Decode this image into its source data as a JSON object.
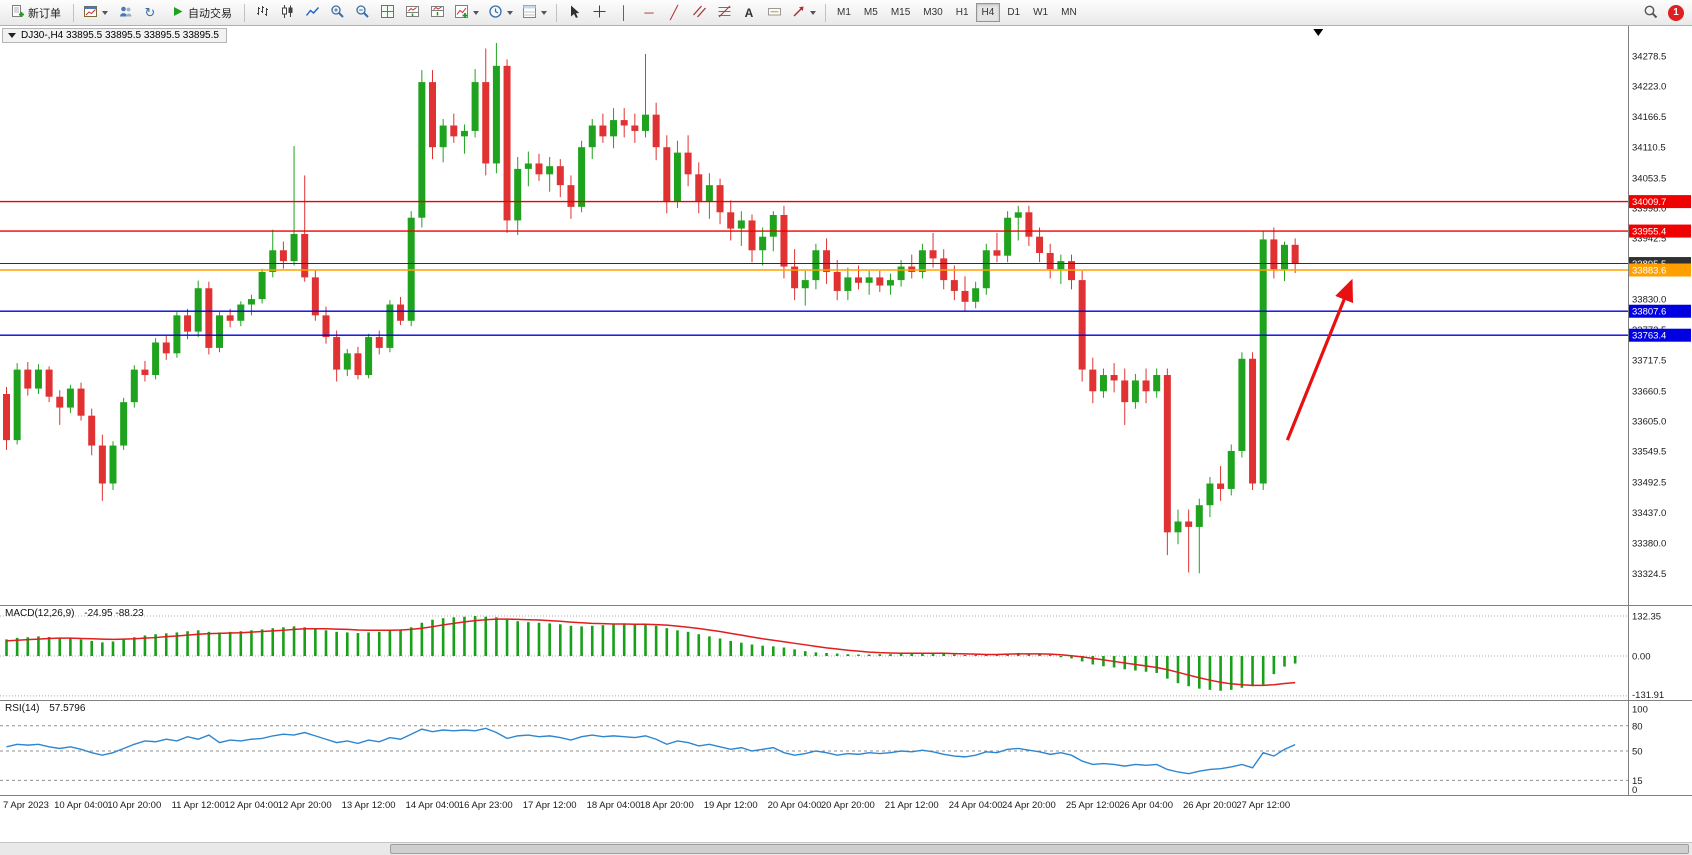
{
  "toolbar": {
    "new_order_label": "新订单",
    "auto_trading_label": "自动交易",
    "timeframes": [
      "M1",
      "M5",
      "M15",
      "M30",
      "H1",
      "H4",
      "D1",
      "W1",
      "MN"
    ],
    "active_timeframe": "H4",
    "notification_count": "1",
    "glyphs": {
      "refresh": "↻",
      "vline": "│",
      "hline": "─",
      "trendline": "╱",
      "text": "A"
    }
  },
  "chart": {
    "tab_title": "DJ30-,H4 33895.5 33895.5 33895.5 33895.5",
    "colors": {
      "bull": "#1fa31f",
      "bear": "#e03232",
      "macd_hist": "#18a018",
      "macd_signal": "#e01e1e",
      "rsi": "#2e86d0",
      "arrow": "#e81010",
      "separator": "#808080",
      "axis_text": "#1a1a1a"
    }
  },
  "chart_data": {
    "type": "candlestick",
    "symbol": "DJ30-",
    "period": "H4",
    "current_price": 33895.5,
    "price_range": [
      33290,
      34315
    ],
    "ohlc": [
      [
        33655,
        33668,
        33552,
        33570
      ],
      [
        33570,
        33712,
        33562,
        33700
      ],
      [
        33700,
        33714,
        33652,
        33665
      ],
      [
        33665,
        33710,
        33655,
        33700
      ],
      [
        33700,
        33706,
        33640,
        33650
      ],
      [
        33650,
        33662,
        33598,
        33630
      ],
      [
        33630,
        33672,
        33620,
        33665
      ],
      [
        33665,
        33676,
        33606,
        33615
      ],
      [
        33615,
        33628,
        33542,
        33560
      ],
      [
        33560,
        33580,
        33458,
        33490
      ],
      [
        33490,
        33568,
        33478,
        33560
      ],
      [
        33560,
        33648,
        33552,
        33640
      ],
      [
        33640,
        33708,
        33630,
        33700
      ],
      [
        33700,
        33716,
        33678,
        33690
      ],
      [
        33690,
        33758,
        33682,
        33750
      ],
      [
        33750,
        33762,
        33718,
        33730
      ],
      [
        33730,
        33806,
        33722,
        33800
      ],
      [
        33800,
        33812,
        33756,
        33770
      ],
      [
        33770,
        33864,
        33760,
        33850
      ],
      [
        33850,
        33862,
        33728,
        33740
      ],
      [
        33740,
        33806,
        33732,
        33800
      ],
      [
        33800,
        33812,
        33778,
        33790
      ],
      [
        33790,
        33826,
        33780,
        33820
      ],
      [
        33820,
        33838,
        33800,
        33830
      ],
      [
        33830,
        33886,
        33822,
        33880
      ],
      [
        33880,
        33958,
        33870,
        33920
      ],
      [
        33920,
        33936,
        33886,
        33900
      ],
      [
        33900,
        34112,
        33892,
        33950
      ],
      [
        33950,
        34058,
        33862,
        33870
      ],
      [
        33870,
        33884,
        33790,
        33800
      ],
      [
        33800,
        33816,
        33748,
        33760
      ],
      [
        33760,
        33772,
        33678,
        33700
      ],
      [
        33700,
        33738,
        33688,
        33730
      ],
      [
        33730,
        33742,
        33682,
        33690
      ],
      [
        33690,
        33766,
        33684,
        33760
      ],
      [
        33760,
        33772,
        33728,
        33740
      ],
      [
        33740,
        33828,
        33732,
        33820
      ],
      [
        33820,
        33834,
        33782,
        33790
      ],
      [
        33790,
        33992,
        33780,
        33980
      ],
      [
        33980,
        34252,
        33962,
        34230
      ],
      [
        34230,
        34252,
        34088,
        34110
      ],
      [
        34110,
        34162,
        34082,
        34150
      ],
      [
        34150,
        34172,
        34118,
        34130
      ],
      [
        34130,
        34152,
        34098,
        34140
      ],
      [
        34140,
        34254,
        34128,
        34230
      ],
      [
        34230,
        34292,
        34058,
        34080
      ],
      [
        34080,
        34302,
        34062,
        34260
      ],
      [
        34260,
        34272,
        33952,
        33975
      ],
      [
        33975,
        34092,
        33948,
        34070
      ],
      [
        34070,
        34102,
        34038,
        34080
      ],
      [
        34080,
        34098,
        34048,
        34060
      ],
      [
        34060,
        34092,
        34028,
        34075
      ],
      [
        34075,
        34088,
        34018,
        34040
      ],
      [
        34040,
        34058,
        33978,
        34000
      ],
      [
        34000,
        34122,
        33990,
        34110
      ],
      [
        34110,
        34162,
        34088,
        34150
      ],
      [
        34150,
        34172,
        34118,
        34130
      ],
      [
        34130,
        34182,
        34108,
        34160
      ],
      [
        34160,
        34182,
        34128,
        34150
      ],
      [
        34150,
        34172,
        34118,
        34140
      ],
      [
        34140,
        34282,
        34128,
        34170
      ],
      [
        34170,
        34192,
        34086,
        34110
      ],
      [
        34110,
        34132,
        33988,
        34010
      ],
      [
        34010,
        34122,
        33998,
        34100
      ],
      [
        34100,
        34132,
        34038,
        34060
      ],
      [
        34060,
        34082,
        33988,
        34010
      ],
      [
        34010,
        34062,
        33978,
        34040
      ],
      [
        34040,
        34052,
        33968,
        33990
      ],
      [
        33990,
        34012,
        33938,
        33960
      ],
      [
        33960,
        33992,
        33928,
        33975
      ],
      [
        33975,
        33986,
        33898,
        33920
      ],
      [
        33920,
        33962,
        33892,
        33945
      ],
      [
        33945,
        33992,
        33918,
        33985
      ],
      [
        33985,
        34002,
        33868,
        33890
      ],
      [
        33890,
        33922,
        33828,
        33850
      ],
      [
        33850,
        33882,
        33818,
        33865
      ],
      [
        33865,
        33932,
        33848,
        33920
      ],
      [
        33920,
        33942,
        33858,
        33880
      ],
      [
        33880,
        33902,
        33828,
        33845
      ],
      [
        33845,
        33888,
        33828,
        33870
      ],
      [
        33870,
        33892,
        33848,
        33860
      ],
      [
        33860,
        33882,
        33838,
        33870
      ],
      [
        33870,
        33882,
        33843,
        33855
      ],
      [
        33855,
        33877,
        33838,
        33865
      ],
      [
        33865,
        33902,
        33853,
        33890
      ],
      [
        33890,
        33912,
        33868,
        33880
      ],
      [
        33880,
        33932,
        33868,
        33920
      ],
      [
        33920,
        33952,
        33888,
        33905
      ],
      [
        33905,
        33922,
        33848,
        33865
      ],
      [
        33865,
        33892,
        33828,
        33845
      ],
      [
        33845,
        33872,
        33808,
        33825
      ],
      [
        33825,
        33862,
        33813,
        33850
      ],
      [
        33850,
        33932,
        33838,
        33920
      ],
      [
        33920,
        33952,
        33898,
        33910
      ],
      [
        33910,
        33992,
        33898,
        33980
      ],
      [
        33980,
        34002,
        33938,
        33990
      ],
      [
        33990,
        34002,
        33928,
        33945
      ],
      [
        33945,
        33962,
        33898,
        33915
      ],
      [
        33915,
        33932,
        33868,
        33885
      ],
      [
        33885,
        33912,
        33858,
        33900
      ],
      [
        33900,
        33912,
        33848,
        33865
      ],
      [
        33865,
        33882,
        33678,
        33700
      ],
      [
        33700,
        33722,
        33638,
        33660
      ],
      [
        33660,
        33702,
        33648,
        33690
      ],
      [
        33690,
        33712,
        33658,
        33680
      ],
      [
        33680,
        33702,
        33598,
        33640
      ],
      [
        33640,
        33692,
        33628,
        33680
      ],
      [
        33680,
        33702,
        33638,
        33660
      ],
      [
        33660,
        33702,
        33648,
        33690
      ],
      [
        33690,
        33702,
        33358,
        33400
      ],
      [
        33400,
        33442,
        33378,
        33420
      ],
      [
        33420,
        33442,
        33326,
        33410
      ],
      [
        33410,
        33462,
        33324.5,
        33450
      ],
      [
        33450,
        33502,
        33428,
        33490
      ],
      [
        33490,
        33522,
        33458,
        33480
      ],
      [
        33480,
        33562,
        33468,
        33550
      ],
      [
        33550,
        33732,
        33538,
        33720
      ],
      [
        33720,
        33732,
        33478,
        33490
      ],
      [
        33490,
        33956,
        33478,
        33940
      ],
      [
        33940,
        33962,
        33868,
        33885
      ],
      [
        33885,
        33936,
        33863,
        33930
      ],
      [
        33930,
        33942,
        33878,
        33895.5
      ]
    ],
    "y_ticks": [
      34278.5,
      34223.0,
      34166.5,
      34110.5,
      34053.5,
      33998.0,
      33942.5,
      33886.5,
      33830.0,
      33773.5,
      33717.5,
      33660.5,
      33605.0,
      33549.5,
      33492.5,
      33437.0,
      33380.0,
      33324.5
    ],
    "levels": [
      {
        "price": 34009.7,
        "label": "34009.7",
        "color": "#f00000"
      },
      {
        "price": 33955.4,
        "label": "33955.4",
        "color": "#f00000"
      },
      {
        "price": 33895.5,
        "label": "33895.5",
        "color": "#303030",
        "current": true
      },
      {
        "price": 33883.6,
        "label": "33883.6",
        "color": "#ffa000"
      },
      {
        "price": 33807.6,
        "label": "33807.6",
        "color": "#0000e0"
      },
      {
        "price": 33763.4,
        "label": "33763.4",
        "color": "#0000e0"
      }
    ],
    "time_labels": [
      {
        "t": "7 Apr 2023",
        "ci": 0
      },
      {
        "t": "10 Apr 04:00",
        "ci": 7
      },
      {
        "t": "10 Apr 20:00",
        "ci": 12
      },
      {
        "t": "11 Apr 12:00",
        "ci": 18
      },
      {
        "t": "12 Apr 04:00",
        "ci": 23
      },
      {
        "t": "12 Apr 20:00",
        "ci": 28
      },
      {
        "t": "13 Apr 12:00",
        "ci": 34
      },
      {
        "t": "14 Apr 04:00",
        "ci": 40
      },
      {
        "t": "16 Apr 23:00",
        "ci": 45
      },
      {
        "t": "17 Apr 12:00",
        "ci": 51
      },
      {
        "t": "18 Apr 04:00",
        "ci": 57
      },
      {
        "t": "18 Apr 20:00",
        "ci": 62
      },
      {
        "t": "19 Apr 12:00",
        "ci": 68
      },
      {
        "t": "20 Apr 04:00",
        "ci": 74
      },
      {
        "t": "20 Apr 20:00",
        "ci": 79
      },
      {
        "t": "21 Apr 12:00",
        "ci": 85
      },
      {
        "t": "24 Apr 04:00",
        "ci": 91
      },
      {
        "t": "24 Apr 20:00",
        "ci": 96
      },
      {
        "t": "25 Apr 12:00",
        "ci": 102
      },
      {
        "t": "26 Apr 04:00",
        "ci": 107
      },
      {
        "t": "26 Apr 20:00",
        "ci": 113
      },
      {
        "t": "27 Apr 12:00",
        "ci": 118
      }
    ],
    "macd": {
      "name": "MACD(12,26,9)",
      "values_text": "-24.95 -88.23",
      "scale": [
        132.35,
        0,
        -131.91
      ],
      "scale_labels": [
        "132.35",
        "0.00",
        "-131.91"
      ],
      "histogram": [
        55,
        60,
        62,
        65,
        63,
        60,
        58,
        55,
        50,
        45,
        48,
        55,
        62,
        68,
        72,
        75,
        78,
        82,
        85,
        80,
        78,
        80,
        82,
        85,
        88,
        92,
        95,
        98,
        95,
        90,
        85,
        80,
        78,
        76,
        78,
        80,
        85,
        88,
        95,
        110,
        120,
        125,
        128,
        130,
        132.35,
        130,
        128,
        120,
        115,
        112,
        110,
        108,
        105,
        100,
        98,
        100,
        102,
        104,
        105,
        103,
        105,
        100,
        92,
        85,
        80,
        72,
        65,
        58,
        50,
        44,
        38,
        34,
        32,
        28,
        22,
        16,
        12,
        10,
        8,
        6,
        5,
        5,
        6,
        6,
        7,
        8,
        9,
        9,
        8,
        5,
        2,
        2,
        4,
        6,
        8,
        10,
        8,
        5,
        0,
        -4,
        -8,
        -18,
        -28,
        -34,
        -38,
        -44,
        -48,
        -52,
        -56,
        -75,
        -90,
        -100,
        -108,
        -112,
        -115,
        -112,
        -105,
        -100,
        -95,
        -60,
        -35,
        -24.95
      ],
      "signal": [
        50,
        52,
        54,
        56,
        58,
        59,
        59,
        58,
        57,
        56,
        55,
        56,
        57,
        59,
        61,
        64,
        66,
        69,
        72,
        74,
        75,
        76,
        77,
        79,
        81,
        83,
        85,
        88,
        90,
        90,
        90,
        89,
        88,
        86,
        85,
        85,
        85,
        86,
        88,
        92,
        97,
        103,
        108,
        113,
        117,
        120,
        122,
        122,
        121,
        120,
        119,
        117,
        115,
        112,
        110,
        108,
        107,
        106,
        106,
        105,
        105,
        104,
        102,
        99,
        95,
        91,
        86,
        81,
        75,
        69,
        63,
        57,
        52,
        47,
        42,
        37,
        32,
        27,
        23,
        19,
        16,
        13,
        11,
        10,
        9,
        9,
        9,
        9,
        9,
        8,
        7,
        6,
        5,
        5,
        6,
        7,
        7,
        7,
        6,
        4,
        1,
        -3,
        -8,
        -13,
        -18,
        -23,
        -28,
        -33,
        -38,
        -45,
        -54,
        -63,
        -72,
        -80,
        -87,
        -92,
        -95,
        -97,
        -97,
        -95,
        -91,
        -88.23
      ]
    },
    "rsi": {
      "name": "RSI(14)",
      "value_text": "57.5796",
      "scale": [
        100,
        80,
        50,
        15,
        0
      ],
      "scale_labels": [
        "100",
        "80",
        "50",
        "15",
        "0"
      ],
      "levels": [
        80,
        50,
        15
      ],
      "values": [
        55,
        58,
        57,
        58,
        55,
        53,
        55,
        52,
        48,
        45,
        48,
        53,
        58,
        62,
        61,
        64,
        62,
        67,
        64,
        69,
        60,
        63,
        62,
        64,
        65,
        68,
        70,
        69,
        72,
        68,
        64,
        60,
        62,
        59,
        63,
        61,
        66,
        64,
        70,
        76,
        73,
        75,
        74,
        75,
        74,
        77,
        72,
        65,
        68,
        69,
        67,
        68,
        66,
        63,
        67,
        69,
        67,
        68,
        67,
        66,
        68,
        64,
        58,
        62,
        60,
        56,
        58,
        55,
        52,
        54,
        50,
        52,
        54,
        48,
        45,
        47,
        50,
        48,
        45,
        47,
        46,
        48,
        47,
        48,
        50,
        49,
        51,
        49,
        46,
        44,
        43,
        45,
        49,
        48,
        52,
        53,
        51,
        49,
        46,
        48,
        45,
        38,
        34,
        35,
        34,
        32,
        34,
        33,
        34,
        28,
        25,
        23,
        26,
        28,
        29,
        31,
        34,
        30,
        48,
        44,
        52,
        57.58
      ]
    },
    "arrow": {
      "x1_ci": 120.6,
      "p1": 33570,
      "x2_ci": 126.6,
      "p2": 33862
    },
    "shift_marker_ci": 123.5
  }
}
